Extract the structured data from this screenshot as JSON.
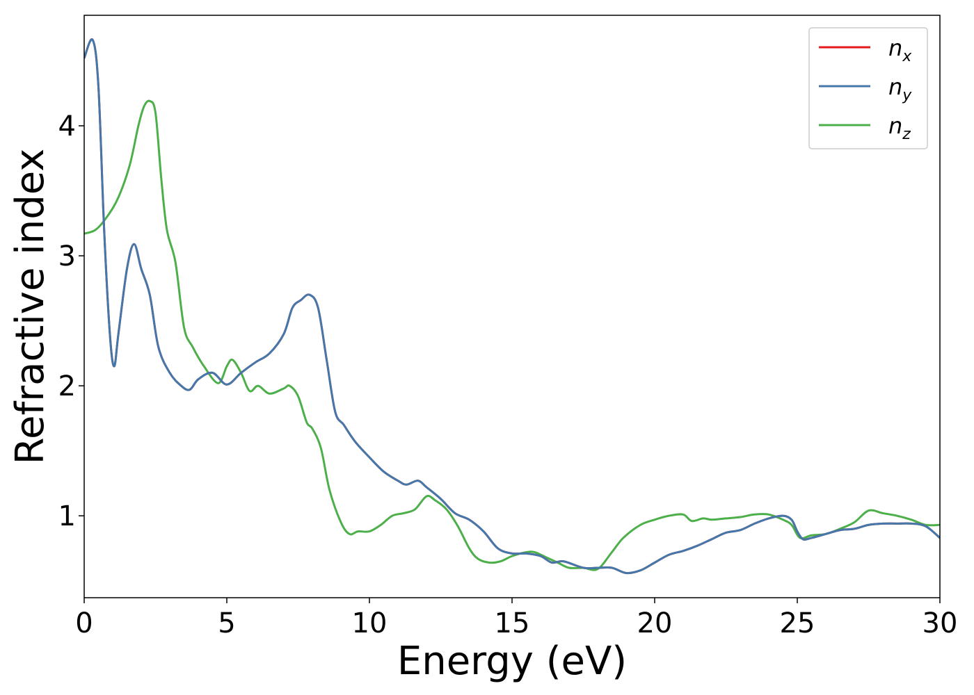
{
  "chart_data": {
    "type": "line",
    "title": "",
    "xlabel": "Energy (eV)",
    "ylabel": "Refractive index",
    "xlim": [
      0,
      30
    ],
    "ylim": [
      0.37,
      4.85
    ],
    "xticks": [
      0,
      5,
      10,
      15,
      20,
      25,
      30
    ],
    "xtick_labels": [
      "0",
      "5",
      "10",
      "15",
      "20",
      "25",
      "30"
    ],
    "yticks": [
      1,
      2,
      3,
      4
    ],
    "ytick_labels": [
      "1",
      "2",
      "3",
      "4"
    ],
    "grid": false,
    "legend_position": "top-right",
    "series": [
      {
        "name": "n_x",
        "legend_main": "n",
        "legend_sub": "x",
        "color": "#e41a1c",
        "x": [
          0,
          0.3,
          0.5,
          0.7,
          0.9,
          1.05,
          1.2,
          1.5,
          1.75,
          2.0,
          2.3,
          2.6,
          3.0,
          3.4,
          3.7,
          4.0,
          4.5,
          5.0,
          5.5,
          6.0,
          6.5,
          7.0,
          7.3,
          7.6,
          7.9,
          8.2,
          8.5,
          8.8,
          9.1,
          9.5,
          10.0,
          10.5,
          11.0,
          11.3,
          11.7,
          12.0,
          12.5,
          13.0,
          13.5,
          14.0,
          14.5,
          15.0,
          15.5,
          16.0,
          16.4,
          16.8,
          17.5,
          18.0,
          18.5,
          19.0,
          19.5,
          20.0,
          20.5,
          21.0,
          21.5,
          22.0,
          22.5,
          23.0,
          23.5,
          24.0,
          24.5,
          24.8,
          25.0,
          25.2,
          25.5,
          26.0,
          26.5,
          27.0,
          27.5,
          28.0,
          28.5,
          29.0,
          29.5,
          30.0
        ],
        "y": [
          4.52,
          4.66,
          4.3,
          3.2,
          2.4,
          2.15,
          2.4,
          2.9,
          3.09,
          2.9,
          2.7,
          2.3,
          2.1,
          2.0,
          1.97,
          2.05,
          2.1,
          2.01,
          2.1,
          2.18,
          2.25,
          2.4,
          2.6,
          2.66,
          2.7,
          2.6,
          2.2,
          1.8,
          1.7,
          1.57,
          1.45,
          1.34,
          1.27,
          1.24,
          1.27,
          1.22,
          1.13,
          1.02,
          0.97,
          0.88,
          0.75,
          0.71,
          0.71,
          0.69,
          0.64,
          0.65,
          0.6,
          0.6,
          0.6,
          0.56,
          0.58,
          0.64,
          0.7,
          0.73,
          0.77,
          0.82,
          0.87,
          0.89,
          0.94,
          0.98,
          1.0,
          0.97,
          0.88,
          0.82,
          0.83,
          0.86,
          0.89,
          0.9,
          0.93,
          0.94,
          0.94,
          0.94,
          0.92,
          0.83
        ]
      },
      {
        "name": "n_y",
        "legend_main": "n",
        "legend_sub": "y",
        "color": "#4477aa",
        "x": [
          0,
          0.3,
          0.5,
          0.7,
          0.9,
          1.05,
          1.2,
          1.5,
          1.75,
          2.0,
          2.3,
          2.6,
          3.0,
          3.4,
          3.7,
          4.0,
          4.5,
          5.0,
          5.5,
          6.0,
          6.5,
          7.0,
          7.3,
          7.6,
          7.9,
          8.2,
          8.5,
          8.8,
          9.1,
          9.5,
          10.0,
          10.5,
          11.0,
          11.3,
          11.7,
          12.0,
          12.5,
          13.0,
          13.5,
          14.0,
          14.5,
          15.0,
          15.5,
          16.0,
          16.4,
          16.8,
          17.5,
          18.0,
          18.5,
          19.0,
          19.5,
          20.0,
          20.5,
          21.0,
          21.5,
          22.0,
          22.5,
          23.0,
          23.5,
          24.0,
          24.5,
          24.8,
          25.0,
          25.2,
          25.5,
          26.0,
          26.5,
          27.0,
          27.5,
          28.0,
          28.5,
          29.0,
          29.5,
          30.0
        ],
        "y": [
          4.52,
          4.66,
          4.3,
          3.2,
          2.4,
          2.15,
          2.4,
          2.9,
          3.09,
          2.9,
          2.7,
          2.3,
          2.1,
          2.0,
          1.97,
          2.05,
          2.1,
          2.01,
          2.1,
          2.18,
          2.25,
          2.4,
          2.6,
          2.66,
          2.7,
          2.6,
          2.2,
          1.8,
          1.7,
          1.57,
          1.45,
          1.34,
          1.27,
          1.24,
          1.27,
          1.22,
          1.13,
          1.02,
          0.97,
          0.88,
          0.75,
          0.71,
          0.71,
          0.69,
          0.64,
          0.65,
          0.6,
          0.6,
          0.6,
          0.56,
          0.58,
          0.64,
          0.7,
          0.73,
          0.77,
          0.82,
          0.87,
          0.89,
          0.94,
          0.98,
          1.0,
          0.97,
          0.88,
          0.82,
          0.83,
          0.86,
          0.89,
          0.9,
          0.93,
          0.94,
          0.94,
          0.94,
          0.92,
          0.83
        ]
      },
      {
        "name": "n_z",
        "legend_main": "n",
        "legend_sub": "z",
        "color": "#4daf4a",
        "x": [
          0,
          0.4,
          0.8,
          1.2,
          1.6,
          1.9,
          2.1,
          2.3,
          2.5,
          2.7,
          2.9,
          3.2,
          3.5,
          3.8,
          4.2,
          4.7,
          5.0,
          5.2,
          5.5,
          5.8,
          6.1,
          6.5,
          7.0,
          7.2,
          7.5,
          7.8,
          8.0,
          8.3,
          8.6,
          9.0,
          9.3,
          9.6,
          10.0,
          10.4,
          10.8,
          11.2,
          11.6,
          12.0,
          12.3,
          12.7,
          13.1,
          13.5,
          13.8,
          14.2,
          14.6,
          15.0,
          15.5,
          15.8,
          16.2,
          16.6,
          17.0,
          17.5,
          18.0,
          18.5,
          18.9,
          19.5,
          20.0,
          20.5,
          21.0,
          21.3,
          21.7,
          22.0,
          22.5,
          23.0,
          23.5,
          24.0,
          24.5,
          24.8,
          25.1,
          25.5,
          26.0,
          26.5,
          27.0,
          27.5,
          28.0,
          28.5,
          29.0,
          29.5,
          30.0
        ],
        "y": [
          3.17,
          3.2,
          3.3,
          3.45,
          3.7,
          4.0,
          4.15,
          4.19,
          4.1,
          3.6,
          3.2,
          2.95,
          2.45,
          2.3,
          2.15,
          2.02,
          2.15,
          2.2,
          2.1,
          1.96,
          2.0,
          1.94,
          1.98,
          2.0,
          1.92,
          1.72,
          1.67,
          1.52,
          1.2,
          0.95,
          0.86,
          0.88,
          0.88,
          0.93,
          1.0,
          1.02,
          1.05,
          1.15,
          1.12,
          1.05,
          0.92,
          0.75,
          0.67,
          0.64,
          0.65,
          0.69,
          0.72,
          0.72,
          0.68,
          0.64,
          0.6,
          0.6,
          0.59,
          0.72,
          0.83,
          0.93,
          0.97,
          1.0,
          1.01,
          0.96,
          0.98,
          0.97,
          0.98,
          0.99,
          1.01,
          1.01,
          0.97,
          0.93,
          0.83,
          0.85,
          0.86,
          0.9,
          0.95,
          1.04,
          1.02,
          1.0,
          0.97,
          0.93,
          0.93
        ]
      }
    ]
  }
}
